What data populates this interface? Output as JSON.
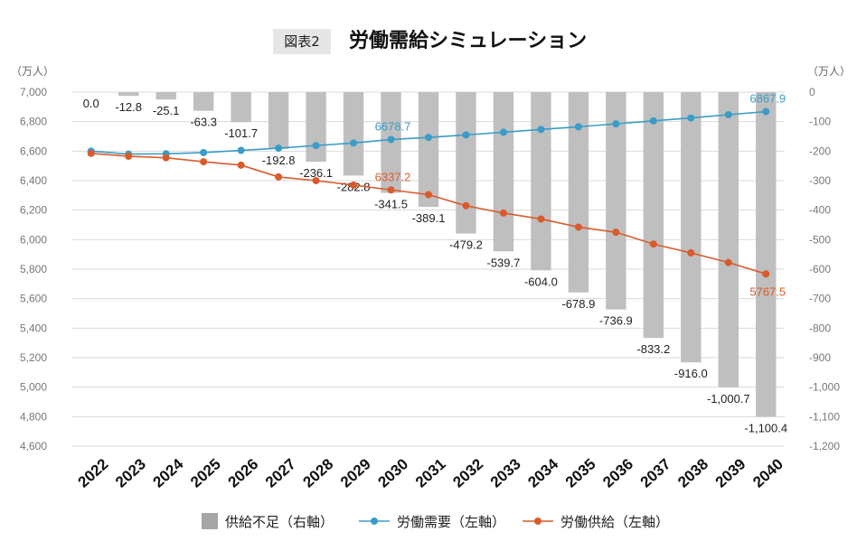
{
  "header": {
    "badge": "図表2",
    "title": "労働需給シミュレーション",
    "unit_left": "（万人）",
    "unit_right": "（万人）"
  },
  "colors": {
    "demand": "#3a9cc8",
    "supply": "#d95b2b",
    "bar": "#bfbfbf",
    "grid": "#d9d9d9",
    "axis_text": "#777777"
  },
  "legend": {
    "bar": "供給不足（右軸）",
    "demand": "労働需要（左軸）",
    "supply": "労働供給（左軸）"
  },
  "chart_data": {
    "type": "bar+line",
    "categories": [
      "2022",
      "2023",
      "2024",
      "2025",
      "2026",
      "2027",
      "2028",
      "2029",
      "2030",
      "2031",
      "2032",
      "2033",
      "2034",
      "2035",
      "2036",
      "2037",
      "2038",
      "2039",
      "2040"
    ],
    "bars": {
      "name": "供給不足（右軸）",
      "axis": "right",
      "values": [
        0.0,
        -12.8,
        -25.1,
        -63.3,
        -101.7,
        -192.8,
        -236.1,
        -282.8,
        -341.5,
        -389.1,
        -479.2,
        -539.7,
        -604.0,
        -678.9,
        -736.9,
        -833.2,
        -916.0,
        -1000.7,
        -1100.4
      ],
      "labels": [
        "0.0",
        "-12.8",
        "-25.1",
        "-63.3",
        "-101.7",
        "-192.8",
        "-236.1",
        "-282.8",
        "-341.5",
        "-389.1",
        "-479.2",
        "-539.7",
        "-604.0",
        "-678.9",
        "-736.9",
        "-833.2",
        "-916.0",
        "-1,000.7",
        "-1,100.4"
      ]
    },
    "series": [
      {
        "name": "労働需要（左軸）",
        "axis": "left",
        "values": [
          6600,
          6580,
          6582,
          6590,
          6605,
          6620,
          6638,
          6655,
          6678.7,
          6693,
          6710,
          6728,
          6747,
          6765,
          6785,
          6805,
          6825,
          6847,
          6867.9
        ],
        "point_labels": {
          "8": "6678.7",
          "18": "6867.9"
        }
      },
      {
        "name": "労働供給（左軸）",
        "axis": "left",
        "values": [
          6585,
          6565,
          6555,
          6528,
          6505,
          6425,
          6400,
          6370,
          6337.2,
          6305,
          6230,
          6180,
          6140,
          6085,
          6050,
          5970,
          5910,
          5845,
          5767.5
        ],
        "point_labels": {
          "8": "6337.2",
          "18": "5767.5"
        }
      }
    ],
    "y_left": {
      "min": 4600,
      "max": 7000,
      "step": 200,
      "tick_labels": [
        "4,600",
        "4,800",
        "5,000",
        "5,200",
        "5,400",
        "5,600",
        "5,800",
        "6,000",
        "6,200",
        "6,400",
        "6,600",
        "6,800",
        "7,000"
      ]
    },
    "y_right": {
      "min": -1200,
      "max": 0,
      "step": 100,
      "tick_labels": [
        "-1,200",
        "-1,100",
        "-1,000",
        "-900",
        "-800",
        "-700",
        "-600",
        "-500",
        "-400",
        "-300",
        "-200",
        "-100",
        "0"
      ]
    },
    "grid": true,
    "legend_position": "bottom"
  }
}
